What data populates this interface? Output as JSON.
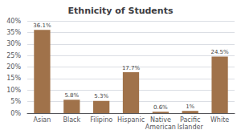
{
  "chart_data": {
    "type": "bar",
    "title": "Ethnicity of Students",
    "categories": [
      "Asian",
      "Black",
      "Filipino",
      "Hispanic",
      "Native\nAmerican",
      "Pacific\nIslander",
      "White"
    ],
    "values": [
      36.1,
      5.8,
      5.3,
      17.7,
      0.6,
      1.0,
      24.5
    ],
    "value_labels": [
      "36.1%",
      "5.8%",
      "5.3%",
      "17.7%",
      "0.6%",
      "1%",
      "24.5%"
    ],
    "data_labels": true,
    "color": "#a0724a",
    "ylim": [
      0,
      40
    ],
    "yticks": [
      {
        "value": 0,
        "label": "0%"
      },
      {
        "value": 5,
        "label": "5%"
      },
      {
        "value": 10,
        "label": "10%"
      },
      {
        "value": 15,
        "label": "15%"
      },
      {
        "value": 20,
        "label": "20%"
      },
      {
        "value": 25,
        "label": "25%"
      },
      {
        "value": 30,
        "label": "30%"
      },
      {
        "value": 35,
        "label": "35%"
      },
      {
        "value": 40,
        "label": "40%"
      }
    ],
    "grid": true
  }
}
